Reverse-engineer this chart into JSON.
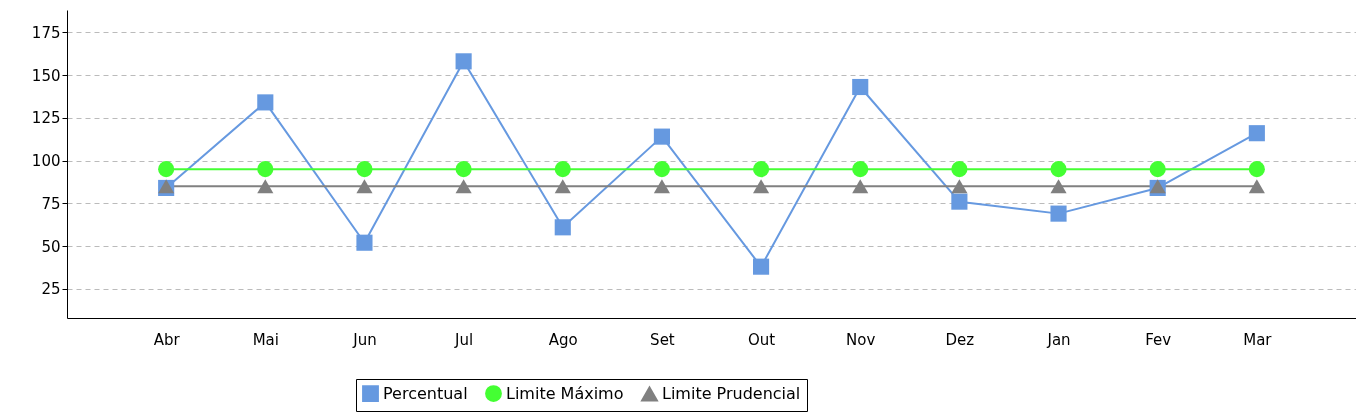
{
  "chart_data": {
    "type": "line",
    "categories": [
      "Abr",
      "Mai",
      "Jun",
      "Jul",
      "Ago",
      "Set",
      "Out",
      "Nov",
      "Dez",
      "Jan",
      "Fev",
      "Mar"
    ],
    "series": [
      {
        "name": "Percentual",
        "color": "#6699e0",
        "marker": "square",
        "values": [
          84,
          134,
          52,
          158,
          61,
          114,
          38,
          143,
          76,
          69,
          84,
          116
        ]
      },
      {
        "name": "Limite Máximo",
        "color": "#44ff33",
        "marker": "circle",
        "values": [
          95,
          95,
          95,
          95,
          95,
          95,
          95,
          95,
          95,
          95,
          95,
          95
        ]
      },
      {
        "name": "Limite Prudencial",
        "color": "#808080",
        "marker": "triangle",
        "values": [
          85,
          85,
          85,
          85,
          85,
          85,
          85,
          85,
          85,
          85,
          85,
          85
        ]
      }
    ],
    "ylim": [
      8,
      188
    ],
    "yticks": [
      25,
      50,
      75,
      100,
      125,
      150,
      175
    ],
    "grid": "y",
    "legend": "bottom",
    "line_style": "solid"
  }
}
